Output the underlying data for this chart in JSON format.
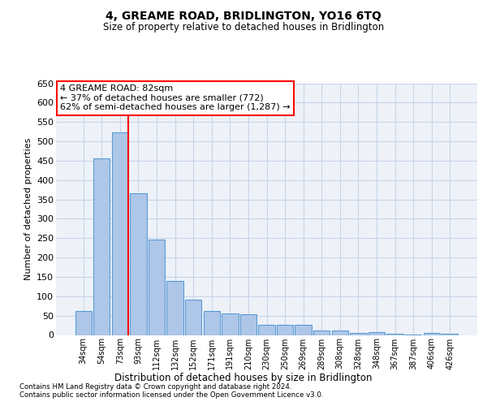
{
  "title": "4, GREAME ROAD, BRIDLINGTON, YO16 6TQ",
  "subtitle": "Size of property relative to detached houses in Bridlington",
  "xlabel": "Distribution of detached houses by size in Bridlington",
  "ylabel": "Number of detached properties",
  "categories": [
    "34sqm",
    "54sqm",
    "73sqm",
    "93sqm",
    "112sqm",
    "132sqm",
    "152sqm",
    "171sqm",
    "191sqm",
    "210sqm",
    "230sqm",
    "250sqm",
    "269sqm",
    "289sqm",
    "308sqm",
    "328sqm",
    "348sqm",
    "367sqm",
    "387sqm",
    "406sqm",
    "426sqm"
  ],
  "values": [
    62,
    456,
    524,
    366,
    246,
    139,
    91,
    62,
    55,
    53,
    26,
    26,
    27,
    11,
    12,
    6,
    8,
    3,
    2,
    5,
    3
  ],
  "bar_color": "#aec6e8",
  "bar_edge_color": "#5b9bd5",
  "vline_x": 2.45,
  "vline_color": "red",
  "annotation_text": "4 GREAME ROAD: 82sqm\n← 37% of detached houses are smaller (772)\n62% of semi-detached houses are larger (1,287) →",
  "annotation_box_color": "white",
  "annotation_box_edge_color": "red",
  "ylim": [
    0,
    650
  ],
  "yticks": [
    0,
    50,
    100,
    150,
    200,
    250,
    300,
    350,
    400,
    450,
    500,
    550,
    600,
    650
  ],
  "footer1": "Contains HM Land Registry data © Crown copyright and database right 2024.",
  "footer2": "Contains public sector information licensed under the Open Government Licence v3.0.",
  "bg_color": "#eef2f8",
  "grid_color": "#c8d4e8"
}
